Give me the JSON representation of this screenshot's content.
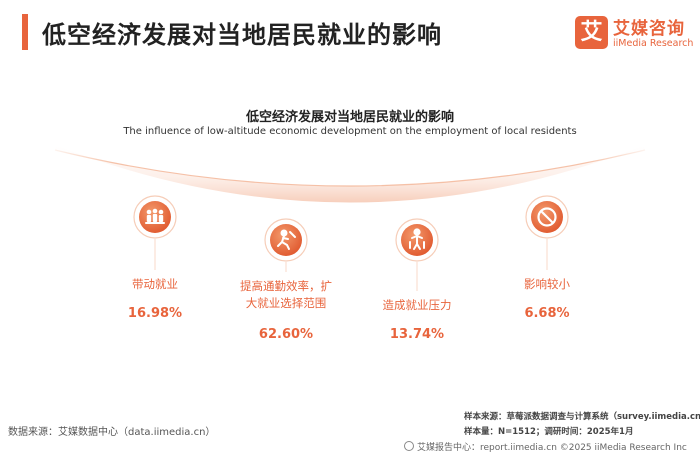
{
  "header": {
    "title": "低空经济发展对当地居民就业的影响",
    "logo_mark": "艾",
    "logo_cn": "艾媒咨询",
    "logo_en": "iiMedia Research"
  },
  "colors": {
    "accent": "#e8643c",
    "arc_light": "#fbe3d8"
  },
  "chart_data": {
    "type": "icon-list",
    "title": "低空经济发展对当地居民就业的影响",
    "subtitle": "The influence of low-altitude economic development on the employment of local residents",
    "unit": "%",
    "categories": [
      "带动就业",
      "提高通勤效率，扩大就业选择范围",
      "造成就业压力",
      "影响较小"
    ],
    "label_lines": [
      [
        "带动就业"
      ],
      [
        "提高通勤效率，扩",
        "大就业选择范围"
      ],
      [
        "造成就业压力"
      ],
      [
        "影响较小"
      ]
    ],
    "values": [
      16.98,
      62.6,
      13.74,
      6.68
    ],
    "value_labels": [
      "16.98%",
      "62.60%",
      "13.74%",
      "6.68%"
    ],
    "icons": [
      "workers-icon",
      "commute-icon",
      "pressure-icon",
      "no-effect-icon"
    ]
  },
  "footer": {
    "source_left": "数据来源：艾媒数据中心（data.iimedia.cn）",
    "sample_source": "样本来源：草莓派数据调查与计算系统（survey.iimedia.cn）",
    "sample_size": "样本量：N=1512；调研时间：2025年1月",
    "report": "艾媒报告中心：report.iimedia.cn  ©2025  iiMedia Research Inc"
  }
}
